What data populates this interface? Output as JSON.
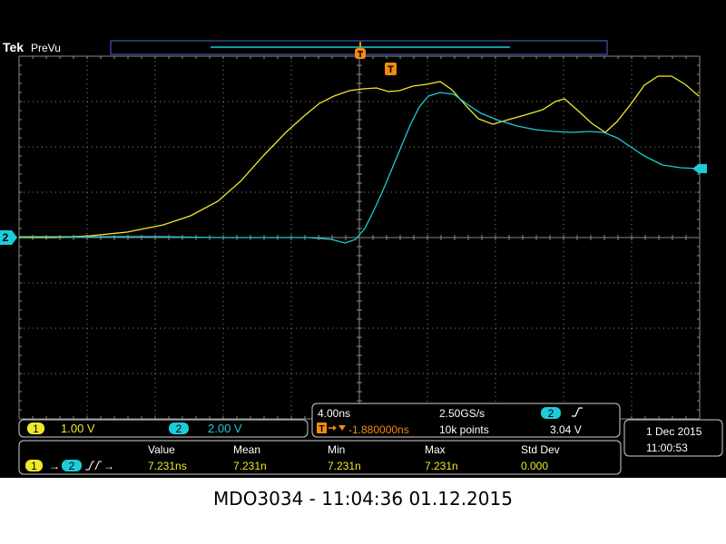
{
  "header": {
    "brand": "Tek",
    "mode": "PreVu"
  },
  "colors": {
    "ch1": "#f0e82a",
    "ch2": "#1ecbd8",
    "trigger": "#f08a12",
    "grid": "#8a8a8a",
    "text": "#ffffff"
  },
  "markers": {
    "trigger_label": "T",
    "ch2_ground_label": "2"
  },
  "channels": {
    "ch1": {
      "num": "1",
      "scale": "1.00 V"
    },
    "ch2": {
      "num": "2",
      "scale": "2.00 V"
    }
  },
  "timebase": {
    "time_div": "4.00ns",
    "sample_rate": "2.50GS/s",
    "trigger_channel": "2",
    "trigger_slope_icon": "rising-edge-icon",
    "trigger_offset": "-1.880000ns",
    "record_length": "10k points",
    "trigger_level": "3.04 V"
  },
  "clock": {
    "date": "1 Dec  2015",
    "time": "11:00:53"
  },
  "measurement": {
    "source_from": "1",
    "source_to": "2",
    "headers": [
      "Value",
      "Mean",
      "Min",
      "Max",
      "Std Dev"
    ],
    "values": [
      "7.231ns",
      "7.231n",
      "7.231n",
      "7.231n",
      "0.000"
    ]
  },
  "caption": "MDO3034 - 11:04:36   01.12.2015"
}
